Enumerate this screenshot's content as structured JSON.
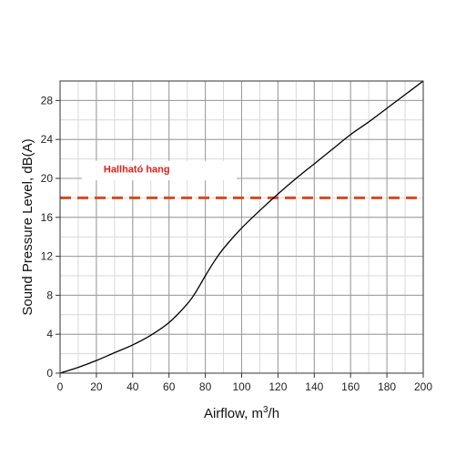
{
  "chart_data": {
    "type": "line",
    "title": "",
    "xlabel": "Airflow, m",
    "xlabel_sup": "3",
    "xlabel_suffix": "/h",
    "ylabel": "Sound Pressure Level, dB(A)",
    "xlim": [
      0,
      200
    ],
    "ylim": [
      0,
      30
    ],
    "x_ticks": [
      0,
      20,
      40,
      60,
      80,
      100,
      120,
      140,
      160,
      180,
      200
    ],
    "y_ticks": [
      0,
      4,
      8,
      12,
      16,
      20,
      24,
      28
    ],
    "x_minor_step": 10,
    "y_minor_step": 2,
    "grid": true,
    "legend": "none",
    "series": [
      {
        "x": [
          0,
          10,
          20,
          30,
          40,
          50,
          60,
          70,
          75,
          80,
          85,
          90,
          100,
          110,
          120,
          130,
          140,
          150,
          160,
          170,
          180,
          190,
          200
        ],
        "y": [
          0,
          0.6,
          1.3,
          2.1,
          2.9,
          3.9,
          5.2,
          7.1,
          8.4,
          10.0,
          11.5,
          12.8,
          14.9,
          16.7,
          18.4,
          20.0,
          21.5,
          23.0,
          24.5,
          25.8,
          27.2,
          28.6,
          30.0
        ],
        "color": "#000000"
      }
    ],
    "threshold": {
      "y": 18,
      "color": "#d64a1e",
      "style": "dashed"
    },
    "annotation": {
      "text": "Hallható hang",
      "color": "#e0201b",
      "x": 20,
      "y": 21
    }
  }
}
